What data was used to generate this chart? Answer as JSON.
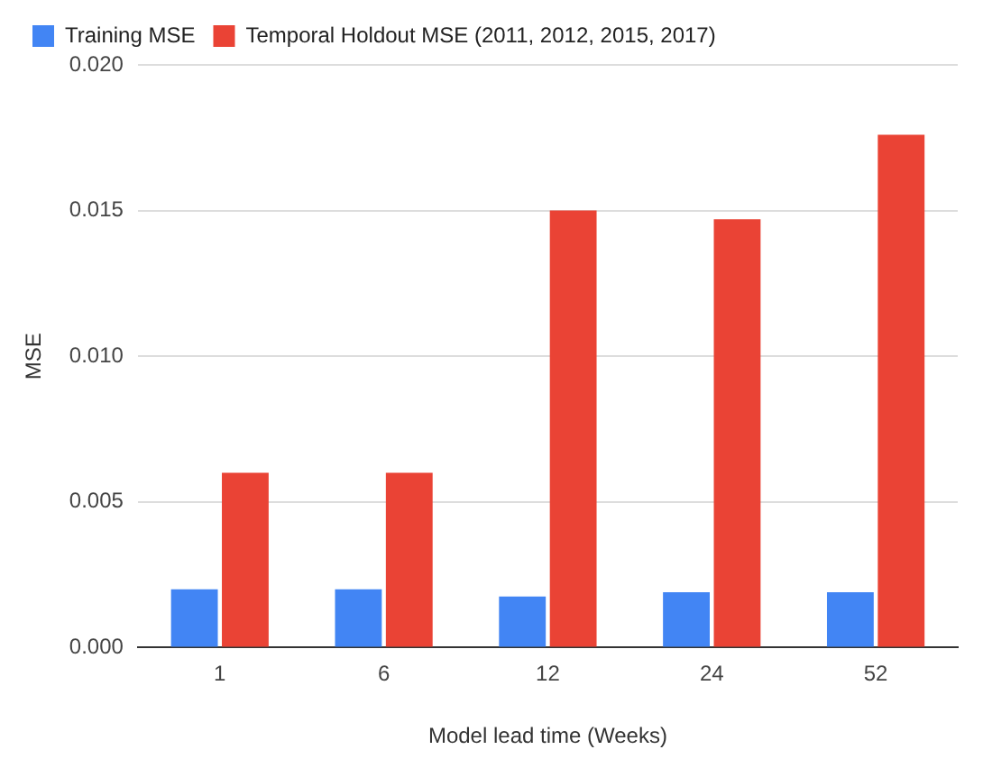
{
  "chart_data": {
    "type": "bar",
    "xlabel": "Model lead time (Weeks)",
    "ylabel": "MSE",
    "categories": [
      "1",
      "6",
      "12",
      "24",
      "52"
    ],
    "series": [
      {
        "name": "Training MSE",
        "color": "#4285f4",
        "values": [
          0.002,
          0.002,
          0.00175,
          0.0019,
          0.0019
        ]
      },
      {
        "name": "Temporal Holdout MSE (2011, 2012, 2015, 2017)",
        "color": "#ea4335",
        "values": [
          0.006,
          0.006,
          0.015,
          0.0147,
          0.0176
        ]
      }
    ],
    "ylim": [
      0,
      0.02
    ],
    "yticks": [
      {
        "value": 0,
        "label": "0.000"
      },
      {
        "value": 0.005,
        "label": "0.005"
      },
      {
        "value": 0.01,
        "label": "0.010"
      },
      {
        "value": 0.015,
        "label": "0.015"
      },
      {
        "value": 0.02,
        "label": "0.020"
      }
    ],
    "grid": "y",
    "legend": "top left"
  }
}
